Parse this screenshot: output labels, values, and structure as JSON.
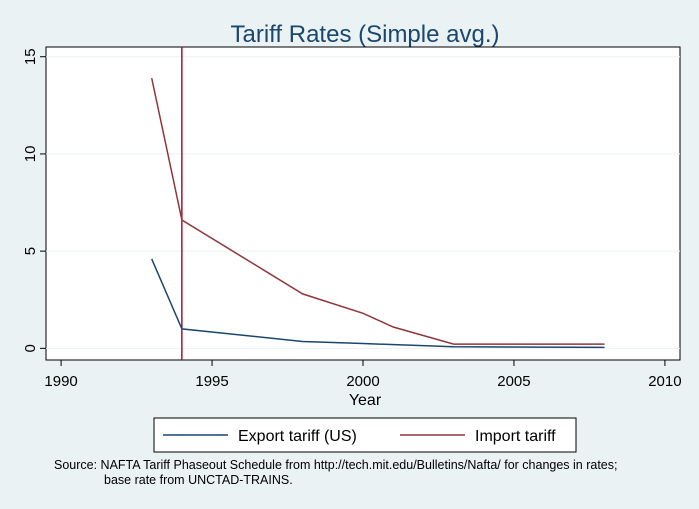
{
  "chart_data": {
    "type": "line",
    "title": "Tariff Rates (Simple avg.)",
    "xlabel": "Year",
    "ylabel": "",
    "xlim": [
      1989.5,
      2010.5
    ],
    "ylim": [
      -0.6,
      15.5
    ],
    "xticks": [
      1990,
      1995,
      2000,
      2005,
      2010
    ],
    "yticks": [
      0,
      5,
      10,
      15
    ],
    "grid": true,
    "legend_position": "bottom",
    "vline": {
      "x": 1994,
      "color": "#a0152e"
    },
    "series": [
      {
        "name": "Export tariff (US)",
        "color": "#1a476f",
        "x": [
          1993,
          1994,
          1998,
          2000,
          2003,
          2008
        ],
        "y": [
          4.6,
          1.0,
          0.35,
          0.25,
          0.08,
          0.05
        ]
      },
      {
        "name": "Import tariff",
        "color": "#90353b",
        "x": [
          1993,
          1994,
          1998,
          2000,
          2001,
          2003,
          2008
        ],
        "y": [
          13.9,
          6.6,
          2.8,
          1.8,
          1.1,
          0.22,
          0.22
        ]
      }
    ]
  },
  "source": {
    "line1": "Source: NAFTA Tariff Phaseout Schedule from http://tech.mit.edu/Bulletins/Nafta/ for changes in rates;",
    "line2": "base rate from UNCTAD-TRAINS."
  }
}
